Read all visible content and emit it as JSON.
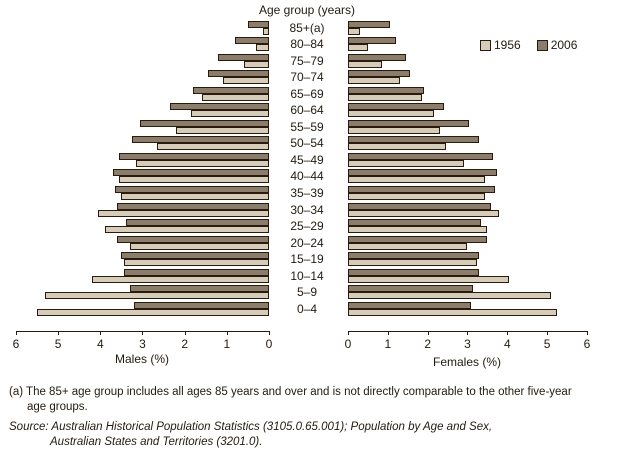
{
  "title": "Age group (years)",
  "legend": {
    "items": [
      {
        "label": "1956",
        "color": "#d5ccba"
      },
      {
        "label": "2006",
        "color": "#8b7d6b"
      }
    ]
  },
  "axes": {
    "male_label": "Males (%)",
    "female_label": "Females (%)",
    "x_ticks": [
      0,
      1,
      2,
      3,
      4,
      5,
      6
    ]
  },
  "footnote_line1": "(a) The 85+ age group includes all ages 85 years and over and is not directly comparable to the other five-year",
  "footnote_line2": "age groups.",
  "source_line1": "Source: Australian Historical Population Statistics (3105.0.65.001); Population by Age and Sex,",
  "source_line2": "Australian States and Territories (3201.0).",
  "colors": {
    "bar_1956": "#d5ccba",
    "bar_2006": "#8b7d6b",
    "border": "#2c1a0c",
    "text": "#231a10"
  },
  "chart_data": {
    "type": "bar",
    "subtype": "population_pyramid",
    "title": "Age group (years)",
    "unit": "percent of total population",
    "left_panel": "Males (%)",
    "right_panel": "Females (%)",
    "xlim_each_side": [
      0,
      6
    ],
    "x_ticks": [
      0,
      1,
      2,
      3,
      4,
      5,
      6
    ],
    "grid": false,
    "legend_position": "top-right",
    "categories_top_to_bottom": [
      "85+(a)",
      "80–84",
      "75–79",
      "70–74",
      "65–69",
      "60–64",
      "55–59",
      "50–54",
      "45–49",
      "40–44",
      "35–39",
      "30–34",
      "25–29",
      "20–24",
      "15–19",
      "10–14",
      "5–9",
      "0–4"
    ],
    "series": [
      {
        "name": "1956",
        "side": "males",
        "values": [
          0.15,
          0.3,
          0.6,
          1.1,
          1.6,
          1.85,
          2.2,
          2.65,
          3.15,
          3.55,
          3.5,
          4.05,
          3.9,
          3.3,
          3.45,
          4.2,
          5.3,
          5.5
        ]
      },
      {
        "name": "2006",
        "side": "males",
        "values": [
          0.5,
          0.8,
          1.2,
          1.45,
          1.8,
          2.35,
          3.05,
          3.25,
          3.55,
          3.7,
          3.65,
          3.6,
          3.4,
          3.6,
          3.5,
          3.45,
          3.3,
          3.2
        ]
      },
      {
        "name": "1956",
        "side": "females",
        "values": [
          0.3,
          0.5,
          0.85,
          1.3,
          1.85,
          2.15,
          2.3,
          2.45,
          2.9,
          3.45,
          3.45,
          3.8,
          3.5,
          3.0,
          3.25,
          4.05,
          5.1,
          5.25
        ]
      },
      {
        "name": "2006",
        "side": "females",
        "values": [
          1.05,
          1.2,
          1.45,
          1.55,
          1.9,
          2.4,
          3.05,
          3.3,
          3.65,
          3.75,
          3.7,
          3.6,
          3.35,
          3.5,
          3.3,
          3.3,
          3.15,
          3.1
        ]
      }
    ]
  }
}
